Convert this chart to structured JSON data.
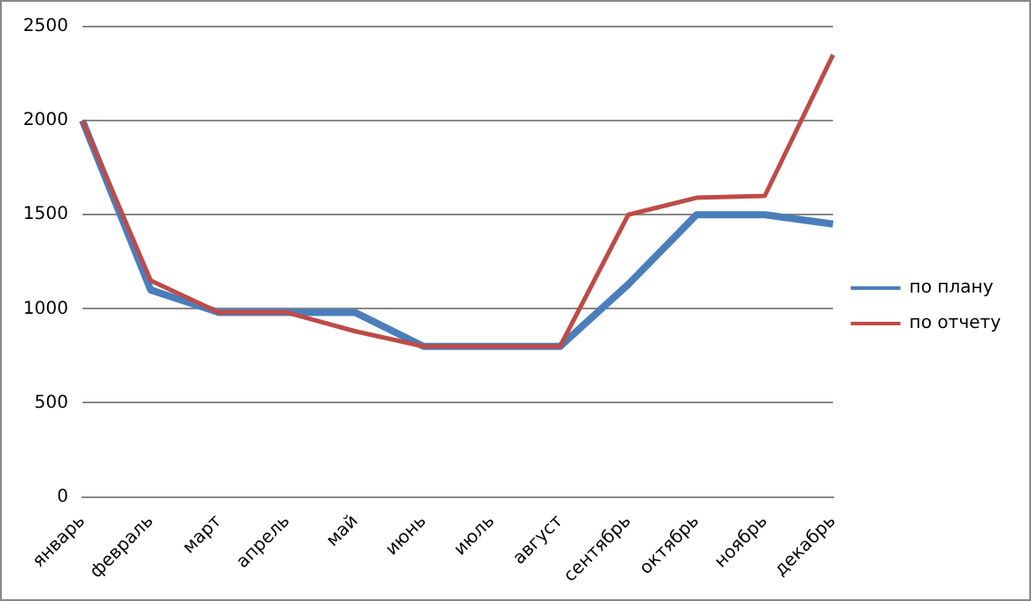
{
  "chart_data": {
    "type": "line",
    "categories": [
      "январь",
      "февраль",
      "март",
      "апрель",
      "май",
      "июнь",
      "июль",
      "август",
      "сентябрь",
      "октябрь",
      "ноябрь",
      "декабрь"
    ],
    "series": [
      {
        "name": "по плану",
        "color": "#4a7ebb",
        "values": [
          2000,
          1100,
          980,
          980,
          980,
          800,
          800,
          800,
          1130,
          1500,
          1500,
          1450
        ]
      },
      {
        "name": "по отчету",
        "color": "#be4b48",
        "values": [
          2000,
          1150,
          980,
          980,
          880,
          800,
          800,
          800,
          1500,
          1590,
          1600,
          2350
        ]
      }
    ],
    "ylim": [
      0,
      2500
    ],
    "yticks": [
      0,
      500,
      1000,
      1500,
      2000,
      2500
    ],
    "grid": "y",
    "legend": "right",
    "marker": "none",
    "line_style": "solid"
  }
}
